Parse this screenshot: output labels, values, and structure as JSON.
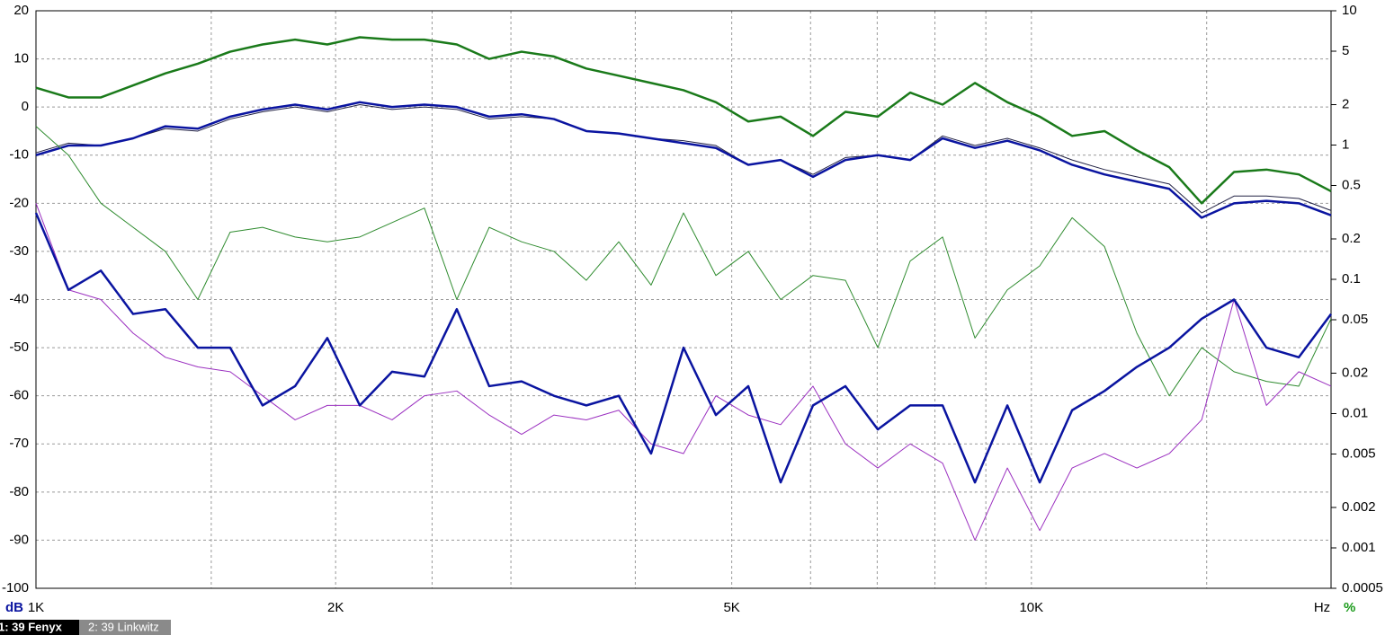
{
  "chart_data": {
    "type": "line",
    "xlog": true,
    "y2log": true,
    "grid": true,
    "xlim": [
      1000,
      20000
    ],
    "ylim": [
      -100,
      20
    ],
    "y2lim": [
      0.0005,
      10
    ],
    "xlabel": "Hz",
    "ylabel": "dB",
    "y2label": "%",
    "xticks": [
      {
        "value": 1000,
        "label": "1K"
      },
      {
        "value": 2000,
        "label": "2K"
      },
      {
        "value": 5000,
        "label": "5K"
      },
      {
        "value": 10000,
        "label": "10K"
      }
    ],
    "xgrid": [
      1500,
      2500,
      3000,
      4000,
      6000,
      7000,
      8000,
      9000,
      15000,
      20000
    ],
    "yticks": [
      20,
      10,
      0,
      -10,
      -20,
      -30,
      -40,
      -50,
      -60,
      -70,
      -80,
      -90,
      -100
    ],
    "y2ticks": [
      10,
      5,
      2,
      1,
      0.5,
      0.2,
      0.1,
      0.05,
      0.02,
      0.01,
      0.005,
      0.002,
      0.001,
      0.0005
    ],
    "tabs": [
      "1: 39 Fenyx",
      "2: 39 Linkwitz"
    ],
    "x": [
      1000,
      1078,
      1162,
      1252,
      1349,
      1454,
      1567,
      1689,
      1821,
      1962,
      2115,
      2279,
      2456,
      2647,
      2853,
      3075,
      3314,
      3572,
      3850,
      4149,
      4472,
      4820,
      5195,
      5599,
      6034,
      6504,
      7010,
      7555,
      8143,
      8776,
      9459,
      10195,
      10988,
      11842,
      12764,
      13757,
      14827,
      15980,
      17223,
      18563,
      20000
    ],
    "series": [
      {
        "color": "#1a7a1a",
        "width": 2.5,
        "values": [
          4,
          2,
          2,
          4.5,
          7,
          9,
          11.5,
          13,
          14,
          13,
          14.5,
          14,
          14,
          13,
          10,
          11.5,
          10.5,
          8,
          6.5,
          5,
          3.5,
          1,
          -3,
          -2,
          -6,
          -1,
          -2,
          3,
          0.5,
          5,
          1,
          -2,
          -6,
          -5,
          -9,
          -12.5,
          -20,
          -13.5,
          -13,
          -14,
          -17.5
        ]
      },
      {
        "color": "#222244",
        "width": 1,
        "values": [
          -9.5,
          -7.5,
          -8,
          -6.5,
          -4.5,
          -5,
          -2.5,
          -1,
          0,
          -1,
          0.5,
          -0.5,
          0,
          -0.5,
          -2.5,
          -2,
          -2.5,
          -5,
          -5.5,
          -6.5,
          -7,
          -8,
          -12,
          -11,
          -14,
          -10.5,
          -10,
          -11,
          -6,
          -8,
          -6.5,
          -8.5,
          -11,
          -13,
          -14.5,
          -16,
          -22,
          -18.5,
          -18.5,
          -19,
          -21.5
        ]
      },
      {
        "color": "#0a14a0",
        "width": 2.5,
        "values": [
          -10,
          -8,
          -8,
          -6.5,
          -4,
          -4.5,
          -2,
          -0.5,
          0.5,
          -0.5,
          1,
          0,
          0.5,
          0,
          -2,
          -1.5,
          -2.5,
          -5,
          -5.5,
          -6.5,
          -7.5,
          -8.5,
          -12,
          -11,
          -14.5,
          -11,
          -10,
          -11,
          -6.5,
          -8.5,
          -7,
          -9,
          -12,
          -14,
          -15.5,
          -17,
          -23,
          -20,
          -19.5,
          -20,
          -22.5
        ]
      },
      {
        "color": "#2e8b2e",
        "width": 1,
        "values": [
          -4,
          -10,
          -20,
          -25,
          -30,
          -40,
          -26,
          -25,
          -27,
          -28,
          -27,
          -24,
          -21,
          -40,
          -25,
          -28,
          -30,
          -36,
          -28,
          -37,
          -22,
          -35,
          -30,
          -40,
          -35,
          -36,
          -50,
          -32,
          -27,
          -48,
          -38,
          -33,
          -23,
          -29,
          -47,
          -60,
          -50,
          -55,
          -57,
          -58,
          -44
        ]
      },
      {
        "color": "#9b30c0",
        "width": 1,
        "values": [
          -20,
          -38,
          -40,
          -47,
          -52,
          -54,
          -55,
          -60,
          -65,
          -62,
          -62,
          -65,
          -60,
          -59,
          -64,
          -68,
          -64,
          -65,
          -63,
          -70,
          -72,
          -60,
          -64,
          -66,
          -58,
          -70,
          -75,
          -70,
          -74,
          -90,
          -75,
          -88,
          -75,
          -72,
          -75,
          -72,
          -65,
          -40,
          -62,
          -55,
          -58
        ]
      },
      {
        "color": "#0a14a0",
        "width": 2.5,
        "values": [
          -22,
          -38,
          -34,
          -43,
          -42,
          -50,
          -50,
          -62,
          -58,
          -48,
          -62,
          -55,
          -56,
          -42,
          -58,
          -57,
          -60,
          -62,
          -60,
          -72,
          -50,
          -64,
          -58,
          -78,
          -62,
          -58,
          -67,
          -62,
          -62,
          -78,
          -62,
          -78,
          -63,
          -59,
          -54,
          -50,
          -44,
          -40,
          -50,
          -52,
          -43
        ]
      }
    ]
  }
}
